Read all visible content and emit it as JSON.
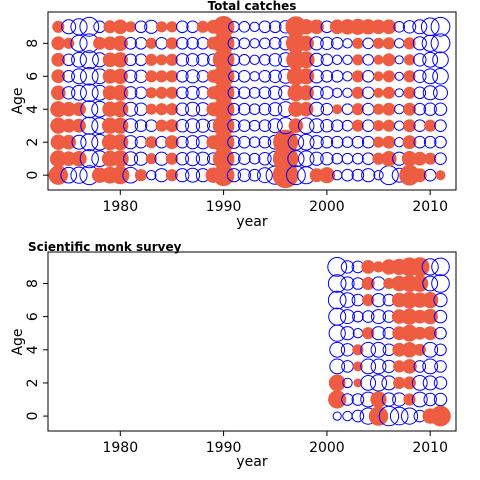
{
  "colors": {
    "negative": "#EE5C42",
    "positive": "#0000FF"
  },
  "chart_data": [
    {
      "type": "scatter",
      "subtype": "bubble",
      "title": "Total catches",
      "xlabel": "year",
      "ylabel": "Age",
      "xlim": [
        1973,
        2012.5
      ],
      "ylim": [
        -0.9,
        9.9
      ],
      "x_ticks": [
        1980,
        1990,
        2000,
        2010
      ],
      "y_ticks": [
        0,
        2,
        4,
        6,
        8
      ],
      "years": [
        1974,
        1975,
        1976,
        1977,
        1978,
        1979,
        1980,
        1981,
        1982,
        1983,
        1984,
        1985,
        1986,
        1987,
        1988,
        1989,
        1990,
        1991,
        1992,
        1993,
        1994,
        1995,
        1996,
        1997,
        1998,
        1999,
        2000,
        2001,
        2002,
        2003,
        2004,
        2005,
        2006,
        2007,
        2008,
        2009,
        2010,
        2011
      ],
      "ages": [
        0,
        1,
        2,
        3,
        4,
        5,
        6,
        7,
        8,
        9
      ],
      "series": [
        {
          "year": 1974,
          "values": [
            -0.8,
            -0.6,
            -0.5,
            -0.55,
            -0.55,
            -0.45,
            -0.4,
            -0.4,
            -0.4,
            -0.3
          ]
        },
        {
          "year": 1975,
          "values": [
            0.55,
            -0.45,
            -0.45,
            -0.4,
            -0.45,
            0.35,
            0.3,
            0.3,
            -0.25,
            0.45
          ]
        },
        {
          "year": 1976,
          "values": [
            0.6,
            -0.5,
            0.45,
            -0.4,
            -0.4,
            0.5,
            0.5,
            0.5,
            0.6,
            0.6
          ]
        },
        {
          "year": 1977,
          "values": [
            0.8,
            0.75,
            0.65,
            0.65,
            0.65,
            0.7,
            0.7,
            0.75,
            0.8,
            0.8
          ]
        },
        {
          "year": 1978,
          "values": [
            -0.5,
            0.55,
            0.55,
            0.55,
            0.55,
            0.5,
            0.5,
            0.45,
            -0.35,
            0.3
          ]
        },
        {
          "year": 1979,
          "values": [
            -0.6,
            -0.55,
            -0.55,
            -0.55,
            -0.5,
            -0.45,
            -0.45,
            -0.45,
            -0.4,
            -0.35
          ]
        },
        {
          "year": 1980,
          "values": [
            -0.7,
            -0.6,
            -0.55,
            -0.55,
            -0.55,
            -0.55,
            -0.5,
            -0.5,
            -0.5,
            -0.45
          ]
        },
        {
          "year": 1981,
          "values": [
            0.55,
            0.45,
            0.4,
            0.45,
            0.45,
            0.35,
            0.35,
            0.3,
            0.3,
            -0.25
          ]
        },
        {
          "year": 1982,
          "values": [
            -0.3,
            0.4,
            0.3,
            0.3,
            0.35,
            0.3,
            0.35,
            0.3,
            0.3,
            0.3
          ]
        },
        {
          "year": 1983,
          "values": [
            0.2,
            -0.25,
            -0.3,
            0.3,
            -0.25,
            -0.25,
            -0.3,
            -0.3,
            -0.25,
            0.4
          ]
        },
        {
          "year": 1984,
          "values": [
            0.4,
            0.4,
            0.3,
            -0.3,
            -0.3,
            -0.3,
            -0.3,
            -0.25,
            0.3,
            -0.25
          ]
        },
        {
          "year": 1985,
          "values": [
            -0.3,
            -0.3,
            -0.4,
            -0.35,
            -0.3,
            -0.3,
            -0.3,
            -0.3,
            -0.3,
            -0.25
          ]
        },
        {
          "year": 1986,
          "values": [
            0.4,
            0.35,
            0.3,
            0.35,
            0.35,
            0.3,
            0.3,
            0.35,
            0.3,
            0.3
          ]
        },
        {
          "year": 1987,
          "values": [
            0.45,
            0.45,
            0.4,
            0.45,
            0.45,
            0.4,
            0.4,
            0.35,
            0.3,
            0.3
          ]
        },
        {
          "year": 1988,
          "values": [
            0.4,
            0.4,
            0.4,
            0.4,
            0.4,
            0.35,
            0.3,
            0.35,
            0.3,
            -0.3
          ]
        },
        {
          "year": 1989,
          "values": [
            -0.5,
            0.3,
            -0.4,
            0.3,
            -0.4,
            -0.35,
            -0.35,
            0.3,
            -0.35,
            -0.4
          ]
        },
        {
          "year": 1990,
          "values": [
            -1.0,
            -1.0,
            -1.0,
            -1.0,
            -1.0,
            -1.0,
            -1.0,
            -1.0,
            -1.0,
            -1.0
          ]
        },
        {
          "year": 1991,
          "values": [
            0.4,
            0.35,
            0.35,
            0.35,
            0.3,
            0.3,
            0.25,
            0.3,
            0.3,
            0.25
          ]
        },
        {
          "year": 1992,
          "values": [
            0.35,
            0.3,
            0.3,
            0.3,
            0.3,
            0.3,
            0.3,
            0.25,
            0.25,
            0.25
          ]
        },
        {
          "year": 1993,
          "values": [
            0.3,
            0.25,
            0.25,
            0.25,
            0.25,
            0.25,
            0.2,
            0.2,
            0.2,
            0.2
          ]
        },
        {
          "year": 1994,
          "values": [
            0.5,
            0.35,
            0.3,
            0.3,
            0.3,
            0.3,
            0.3,
            0.25,
            0.25,
            0.3
          ]
        },
        {
          "year": 1995,
          "values": [
            0.75,
            0.5,
            0.45,
            0.45,
            0.4,
            0.4,
            0.35,
            0.35,
            0.3,
            0.3
          ]
        },
        {
          "year": 1996,
          "values": [
            -1.45,
            -1.4,
            -1.35,
            0.6,
            0.5,
            0.45,
            0.45,
            0.45,
            0.4,
            0.35
          ]
        },
        {
          "year": 1997,
          "values": [
            0.8,
            0.6,
            0.55,
            -0.45,
            -0.5,
            -0.6,
            -0.7,
            -0.8,
            -0.85,
            -0.95
          ]
        },
        {
          "year": 1998,
          "values": [
            0.65,
            0.55,
            0.55,
            0.55,
            -0.45,
            -0.5,
            -0.55,
            -0.6,
            -0.5,
            -0.5
          ]
        },
        {
          "year": 1999,
          "values": [
            -0.4,
            0.4,
            0.4,
            0.45,
            0.45,
            0.4,
            0.4,
            0.4,
            0.4,
            -0.45
          ]
        },
        {
          "year": 2000,
          "values": [
            -0.55,
            0.35,
            0.3,
            0.35,
            0.3,
            0.35,
            0.3,
            0.3,
            0.35,
            0.3
          ]
        },
        {
          "year": 2001,
          "values": [
            0.2,
            0.25,
            0.3,
            0.3,
            -0.2,
            0.2,
            0.3,
            0.2,
            0.3,
            -0.45
          ]
        },
        {
          "year": 2002,
          "values": [
            0.3,
            0.25,
            0.25,
            0.25,
            0.25,
            0.2,
            0.2,
            0.2,
            0.2,
            -0.5
          ]
        },
        {
          "year": 2003,
          "values": [
            0.3,
            0.25,
            0.3,
            -0.3,
            -0.3,
            -0.3,
            -0.3,
            -0.25,
            -0.25,
            -0.55
          ]
        },
        {
          "year": 2004,
          "values": [
            0.4,
            0.3,
            0.3,
            0.3,
            0.3,
            0.3,
            0.3,
            0.25,
            0.25,
            -0.5
          ]
        },
        {
          "year": 2005,
          "values": [
            0.2,
            -0.3,
            -0.25,
            -0.25,
            -0.25,
            -0.2,
            -0.2,
            -0.2,
            -0.25,
            -0.45
          ]
        },
        {
          "year": 2006,
          "values": [
            0.8,
            -0.5,
            -0.35,
            -0.3,
            -0.35,
            -0.3,
            -0.3,
            -0.35,
            -0.3,
            -0.45
          ]
        },
        {
          "year": 2007,
          "values": [
            0.45,
            0.4,
            0.2,
            0.2,
            0.2,
            0.15,
            0.15,
            0.15,
            0.2,
            0.25
          ]
        },
        {
          "year": 2008,
          "values": [
            -0.9,
            -0.5,
            -0.4,
            -0.35,
            -0.35,
            -0.3,
            -0.3,
            -0.25,
            -0.3,
            0.35
          ]
        },
        {
          "year": 2009,
          "values": [
            -0.4,
            -0.4,
            0.3,
            0.3,
            0.3,
            0.3,
            0.35,
            0.35,
            0.4,
            0.45
          ]
        },
        {
          "year": 2010,
          "values": [
            0.3,
            -0.3,
            0.3,
            -0.3,
            0.35,
            0.45,
            0.5,
            0.5,
            0.6,
            0.7
          ]
        },
        {
          "year": 2011,
          "values": [
            -0.2,
            0.3,
            0.3,
            0.3,
            0.35,
            0.45,
            0.55,
            0.55,
            0.8,
            0.8
          ]
        }
      ]
    },
    {
      "type": "scatter",
      "subtype": "bubble",
      "title": "Scientific monk survey",
      "xlabel": "year",
      "ylabel": "Age",
      "xlim": [
        1973,
        2012.5
      ],
      "ylim": [
        -0.9,
        9.9
      ],
      "x_ticks": [
        1980,
        1990,
        2000,
        2010
      ],
      "y_ticks": [
        0,
        2,
        4,
        6,
        8
      ],
      "years": [
        2001,
        2002,
        2003,
        2004,
        2005,
        2006,
        2007,
        2008,
        2009,
        2010,
        2011
      ],
      "ages": [
        0,
        1,
        2,
        3,
        4,
        5,
        6,
        7,
        8,
        9
      ],
      "series": [
        {
          "year": 2001,
          "values": [
            0.15,
            -0.7,
            -0.6,
            0.5,
            0.5,
            0.6,
            0.65,
            0.7,
            0.7,
            0.8
          ]
        },
        {
          "year": 2002,
          "values": [
            0.2,
            0.3,
            0.2,
            0.3,
            0.35,
            0.4,
            0.45,
            0.5,
            0.4,
            0.35
          ]
        },
        {
          "year": 2003,
          "values": [
            0.3,
            0.3,
            -0.15,
            -0.2,
            -0.25,
            0.2,
            0.25,
            0.3,
            0.3,
            0.3
          ]
        },
        {
          "year": 2004,
          "values": [
            0.6,
            0.5,
            0.5,
            0.5,
            0.5,
            -0.3,
            0.3,
            -0.3,
            -0.35,
            -0.4
          ]
        },
        {
          "year": 2005,
          "values": [
            -0.8,
            -0.55,
            0.6,
            0.5,
            0.5,
            0.4,
            0.45,
            0.4,
            0.4,
            -0.25
          ]
        },
        {
          "year": 2006,
          "values": [
            0.85,
            0.4,
            0.45,
            0.35,
            0.3,
            0.3,
            0.3,
            0.3,
            -0.25,
            -0.5
          ]
        },
        {
          "year": 2007,
          "values": [
            0.7,
            0.4,
            -0.3,
            -0.3,
            -0.4,
            -0.4,
            -0.45,
            -0.45,
            -0.5,
            -0.55
          ]
        },
        {
          "year": 2008,
          "values": [
            0.6,
            -0.3,
            -0.35,
            -0.45,
            -0.5,
            -0.6,
            -0.55,
            -0.6,
            -0.6,
            -0.75
          ]
        },
        {
          "year": 2009,
          "values": [
            0.3,
            0.5,
            0.5,
            0.3,
            -0.3,
            -0.35,
            -0.4,
            -0.5,
            -0.6,
            -0.8
          ]
        },
        {
          "year": 2010,
          "values": [
            -0.5,
            0.35,
            0.45,
            0.5,
            0.5,
            -0.4,
            -0.5,
            -0.55,
            0.5,
            0.6
          ]
        },
        {
          "year": 2011,
          "values": [
            -0.9,
            0.35,
            0.35,
            0.3,
            0.3,
            0.3,
            0.35,
            0.4,
            0.7,
            0.7
          ]
        }
      ]
    }
  ]
}
